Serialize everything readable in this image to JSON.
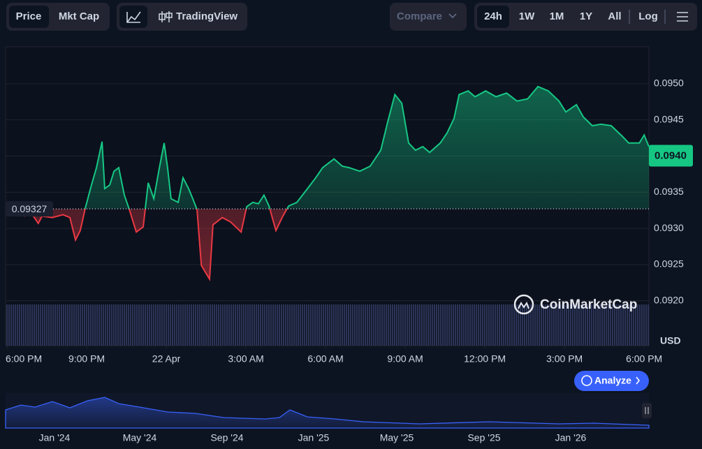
{
  "toolbar": {
    "price": "Price",
    "mkt_cap": "Mkt Cap",
    "tradingview": "TradingView",
    "compare": "Compare",
    "ranges": [
      "24h",
      "1W",
      "1M",
      "1Y",
      "All"
    ],
    "log": "Log"
  },
  "currency": "USD",
  "watermark": "CoinMarketCap",
  "analyze": "Analyze",
  "navigator": {
    "labels": [
      "Jan '24",
      "May '24",
      "Sep '24",
      "Jan '25",
      "May '25",
      "Sep '25",
      "Jan '26"
    ]
  },
  "chart_data": {
    "type": "line",
    "x": [
      0,
      0.26,
      0.66,
      0.92,
      1.18,
      1.32,
      1.71,
      2.11,
      2.37,
      2.58,
      2.76,
      2.95,
      3.16,
      3.37,
      3.58,
      3.68,
      3.87,
      4.03,
      4.21,
      4.42,
      4.61,
      4.87,
      5.13,
      5.32,
      5.53,
      5.74,
      5.92,
      6.05,
      6.18,
      6.45,
      6.63,
      6.84,
      7.0,
      7.16,
      7.32,
      7.63,
      7.76,
      8.11,
      8.42,
      8.82,
      9.03,
      9.26,
      9.47,
      9.68,
      9.87,
      10.13,
      10.39,
      10.61,
      10.92,
      11.32,
      11.63,
      11.89,
      12.32,
      12.63,
      12.89,
      13.29,
      13.68,
      14.08,
      14.34,
      14.61,
      14.87,
      15.13,
      15.39,
      15.66,
      15.92,
      16.32,
      16.58,
      16.84,
      17.03,
      17.37,
      17.63,
      18.03,
      18.42,
      18.82,
      19.21,
      19.61,
      20,
      20.39,
      20.79,
      21.05,
      21.45,
      21.71,
      22.05,
      22.37,
      22.76,
      23.16,
      23.42,
      23.82,
      24.0,
      24.18
    ],
    "values": [
      0.09328,
      0.09321,
      0.09317,
      0.09321,
      0.09307,
      0.09317,
      0.09315,
      0.09319,
      0.09315,
      0.09284,
      0.09297,
      0.09328,
      0.09357,
      0.09384,
      0.0942,
      0.09355,
      0.0936,
      0.09379,
      0.09384,
      0.09346,
      0.09326,
      0.09295,
      0.09302,
      0.09363,
      0.09341,
      0.09384,
      0.09418,
      0.09384,
      0.09341,
      0.09336,
      0.0937,
      0.09355,
      0.09341,
      0.09326,
      0.09249,
      0.0923,
      0.09305,
      0.09315,
      0.09309,
      0.09295,
      0.0933,
      0.09336,
      0.09334,
      0.09346,
      0.09331,
      0.09297,
      0.09317,
      0.09331,
      0.09336,
      0.09355,
      0.0937,
      0.09384,
      0.09396,
      0.09386,
      0.09384,
      0.09379,
      0.09386,
      0.09408,
      0.09447,
      0.09485,
      0.09473,
      0.09418,
      0.09408,
      0.09413,
      0.09405,
      0.09418,
      0.09432,
      0.09452,
      0.09485,
      0.0949,
      0.09482,
      0.0949,
      0.09482,
      0.09487,
      0.09476,
      0.09479,
      0.09496,
      0.0949,
      0.09476,
      0.09461,
      0.09471,
      0.09454,
      0.09442,
      0.09444,
      0.09442,
      0.09428,
      0.09418,
      0.09418,
      0.09429,
      0.09413
    ],
    "baseline": 0.09327,
    "price_tag": {
      "value": 0.094,
      "label": "0.0940"
    },
    "up_color": "#16c784",
    "down_color": "#ea3943",
    "xlim": [
      0,
      24.18
    ],
    "xticks": [
      {
        "value": 0,
        "label": "6:00 PM"
      },
      {
        "value": 3,
        "label": "9:00 PM"
      },
      {
        "value": 6,
        "label": "22 Apr"
      },
      {
        "value": 9,
        "label": "3:00 AM"
      },
      {
        "value": 12,
        "label": "6:00 AM"
      },
      {
        "value": 15,
        "label": "9:00 AM"
      },
      {
        "value": 18,
        "label": "12:00 PM"
      },
      {
        "value": 21,
        "label": "3:00 PM"
      },
      {
        "value": 24,
        "label": "6:00 PM"
      }
    ],
    "ylim": [
      0.09138,
      0.09551
    ],
    "yticks": [
      {
        "value": 0.092,
        "label": "0.0920"
      },
      0.0925,
      {
        "value": 0.093,
        "label": "0.0930"
      },
      0.0935,
      {
        "value": 0.094,
        "label": "0.0940"
      },
      0.0945,
      {
        "value": 0.095,
        "label": "0.0950"
      }
    ],
    "grid": true
  }
}
